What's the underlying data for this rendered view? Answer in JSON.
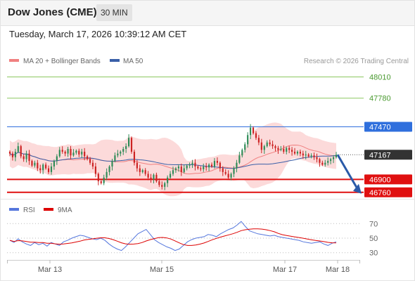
{
  "header": {
    "title": "Dow Jones (CME)",
    "timeframe": "30 MIN",
    "timestamp": "Tuesday, March 17, 2026 10:39:12 AM CET"
  },
  "legend": {
    "ma20_label": "MA 20 + Bollinger Bands",
    "ma50_label": "MA 50",
    "credit": "Research © 2026 Trading Central",
    "rsi_label": "RSI",
    "ma9_label": "9MA"
  },
  "colors": {
    "ma20": "#f08080",
    "bollinger_fill": "#fbd3d3",
    "ma50": "#3a5fa8",
    "up_candle": "#2e8b57",
    "down_candle": "#cc2222",
    "resistance_green": "#8cc860",
    "pivot_blue": "#2f6fdd",
    "support_red": "#e01010",
    "current_price_tag": "#333333",
    "rsi": "#5577dd",
    "rsi_ma": "#dd0000",
    "arrow": "#2a5aa8"
  },
  "chart_data": [
    {
      "type": "candlestick",
      "title": "",
      "x_ticks": [
        "Mar 13",
        "Mar 15",
        "Mar 17",
        "Mar 18"
      ],
      "ylim": [
        46690,
        48120
      ],
      "levels": [
        {
          "value": 48010,
          "label": "48010",
          "kind": "resistance"
        },
        {
          "value": 47780,
          "label": "47780",
          "kind": "resistance"
        },
        {
          "value": 47470,
          "label": "47470",
          "kind": "pivot"
        },
        {
          "value": 47167,
          "label": "47167",
          "kind": "current"
        },
        {
          "value": 46900,
          "label": "46900",
          "kind": "support"
        },
        {
          "value": 46760,
          "label": "46760",
          "kind": "support"
        }
      ],
      "series": [
        {
          "name": "MA 20 + Bollinger Bands"
        },
        {
          "name": "MA 50"
        }
      ],
      "close": [
        47180,
        47140,
        47200,
        47260,
        47150,
        47120,
        47180,
        47100,
        47050,
        47080,
        47020,
        47000,
        47060,
        47020,
        46980,
        47040,
        47100,
        47150,
        47220,
        47200,
        47180,
        47230,
        47160,
        47190,
        47210,
        47170,
        47200,
        47150,
        47120,
        47080,
        47040,
        46960,
        46880,
        46860,
        46920,
        46980,
        47040,
        47100,
        47160,
        47180,
        47200,
        47230,
        47260,
        47350,
        47200,
        47080,
        47020,
        46980,
        47000,
        46960,
        46920,
        46900,
        46950,
        46880,
        46840,
        46820,
        46860,
        46920,
        46960,
        47000,
        47020,
        47040,
        46980,
        47020,
        47050,
        47060,
        47080,
        47040,
        47020,
        47010,
        47040,
        47030,
        47060,
        47040,
        47100,
        47080,
        47020,
        46980,
        46960,
        46920,
        46960,
        47020,
        47080,
        47160,
        47220,
        47280,
        47380,
        47460,
        47400,
        47350,
        47300,
        47220,
        47260,
        47300,
        47280,
        47260,
        47240,
        47220,
        47230,
        47200,
        47240,
        47220,
        47200,
        47180,
        47200,
        47180,
        47160,
        47170,
        47150,
        47160,
        47140,
        47120,
        47080,
        47060,
        47080,
        47100,
        47120,
        47140,
        47167
      ],
      "rsi_axis": [
        30,
        50,
        70
      ],
      "rsi_ylim": [
        22,
        78
      ],
      "rsi": [
        47,
        44,
        49,
        45,
        42,
        40,
        44,
        41,
        43,
        39,
        44,
        42,
        40,
        45,
        47,
        50,
        52,
        54,
        53,
        51,
        49,
        48,
        50,
        47,
        42,
        38,
        35,
        33,
        38,
        44,
        50,
        56,
        59,
        62,
        55,
        48,
        44,
        41,
        38,
        36,
        33,
        35,
        40,
        45,
        48,
        50,
        51,
        52,
        55,
        54,
        52,
        56,
        59,
        62,
        64,
        68,
        73,
        66,
        60,
        58,
        56,
        55,
        54,
        53,
        54,
        52,
        51,
        50,
        49,
        48,
        47,
        45,
        44,
        43,
        44,
        45,
        42,
        40,
        43,
        45
      ]
    }
  ]
}
